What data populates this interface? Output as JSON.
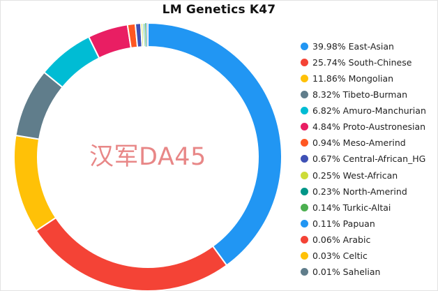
{
  "watermark": "汉军DA45",
  "chart_data": {
    "type": "pie",
    "variant": "donut",
    "title": "LM Genetics K47",
    "legend_position": "right",
    "start_angle_deg": 90,
    "slices": [
      {
        "label": "39.98% East-Asian",
        "name": "East-Asian",
        "value": 39.98,
        "color": "#2196f3"
      },
      {
        "label": "25.74% South-Chinese",
        "name": "South-Chinese",
        "value": 25.74,
        "color": "#f44336"
      },
      {
        "label": "11.86% Mongolian",
        "name": "Mongolian",
        "value": 11.86,
        "color": "#ffc107"
      },
      {
        "label": "8.32% Tibeto-Burman",
        "name": "Tibeto-Burman",
        "value": 8.32,
        "color": "#607d8b"
      },
      {
        "label": "6.82% Amuro-Manchurian",
        "name": "Amuro-Manchurian",
        "value": 6.82,
        "color": "#00bcd4"
      },
      {
        "label": "4.84% Proto-Austronesian",
        "name": "Proto-Austronesian",
        "value": 4.84,
        "color": "#e91e63"
      },
      {
        "label": "0.94% Meso-Amerind",
        "name": "Meso-Amerind",
        "value": 0.94,
        "color": "#ff5722"
      },
      {
        "label": "0.67% Central-African_HG",
        "name": "Central-African_HG",
        "value": 0.67,
        "color": "#3f51b5"
      },
      {
        "label": "0.25% West-African",
        "name": "West-African",
        "value": 0.25,
        "color": "#cddc39"
      },
      {
        "label": "0.23% North-Amerind",
        "name": "North-Amerind",
        "value": 0.23,
        "color": "#009688"
      },
      {
        "label": "0.14% Turkic-Altai",
        "name": "Turkic-Altai",
        "value": 0.14,
        "color": "#4caf50"
      },
      {
        "label": "0.11% Papuan",
        "name": "Papuan",
        "value": 0.11,
        "color": "#2196f3"
      },
      {
        "label": "0.06% Arabic",
        "name": "Arabic",
        "value": 0.06,
        "color": "#f44336"
      },
      {
        "label": "0.03% Celtic",
        "name": "Celtic",
        "value": 0.03,
        "color": "#ffc107"
      },
      {
        "label": "0.01% Sahelian",
        "name": "Sahelian",
        "value": 0.01,
        "color": "#607d8b"
      }
    ]
  }
}
